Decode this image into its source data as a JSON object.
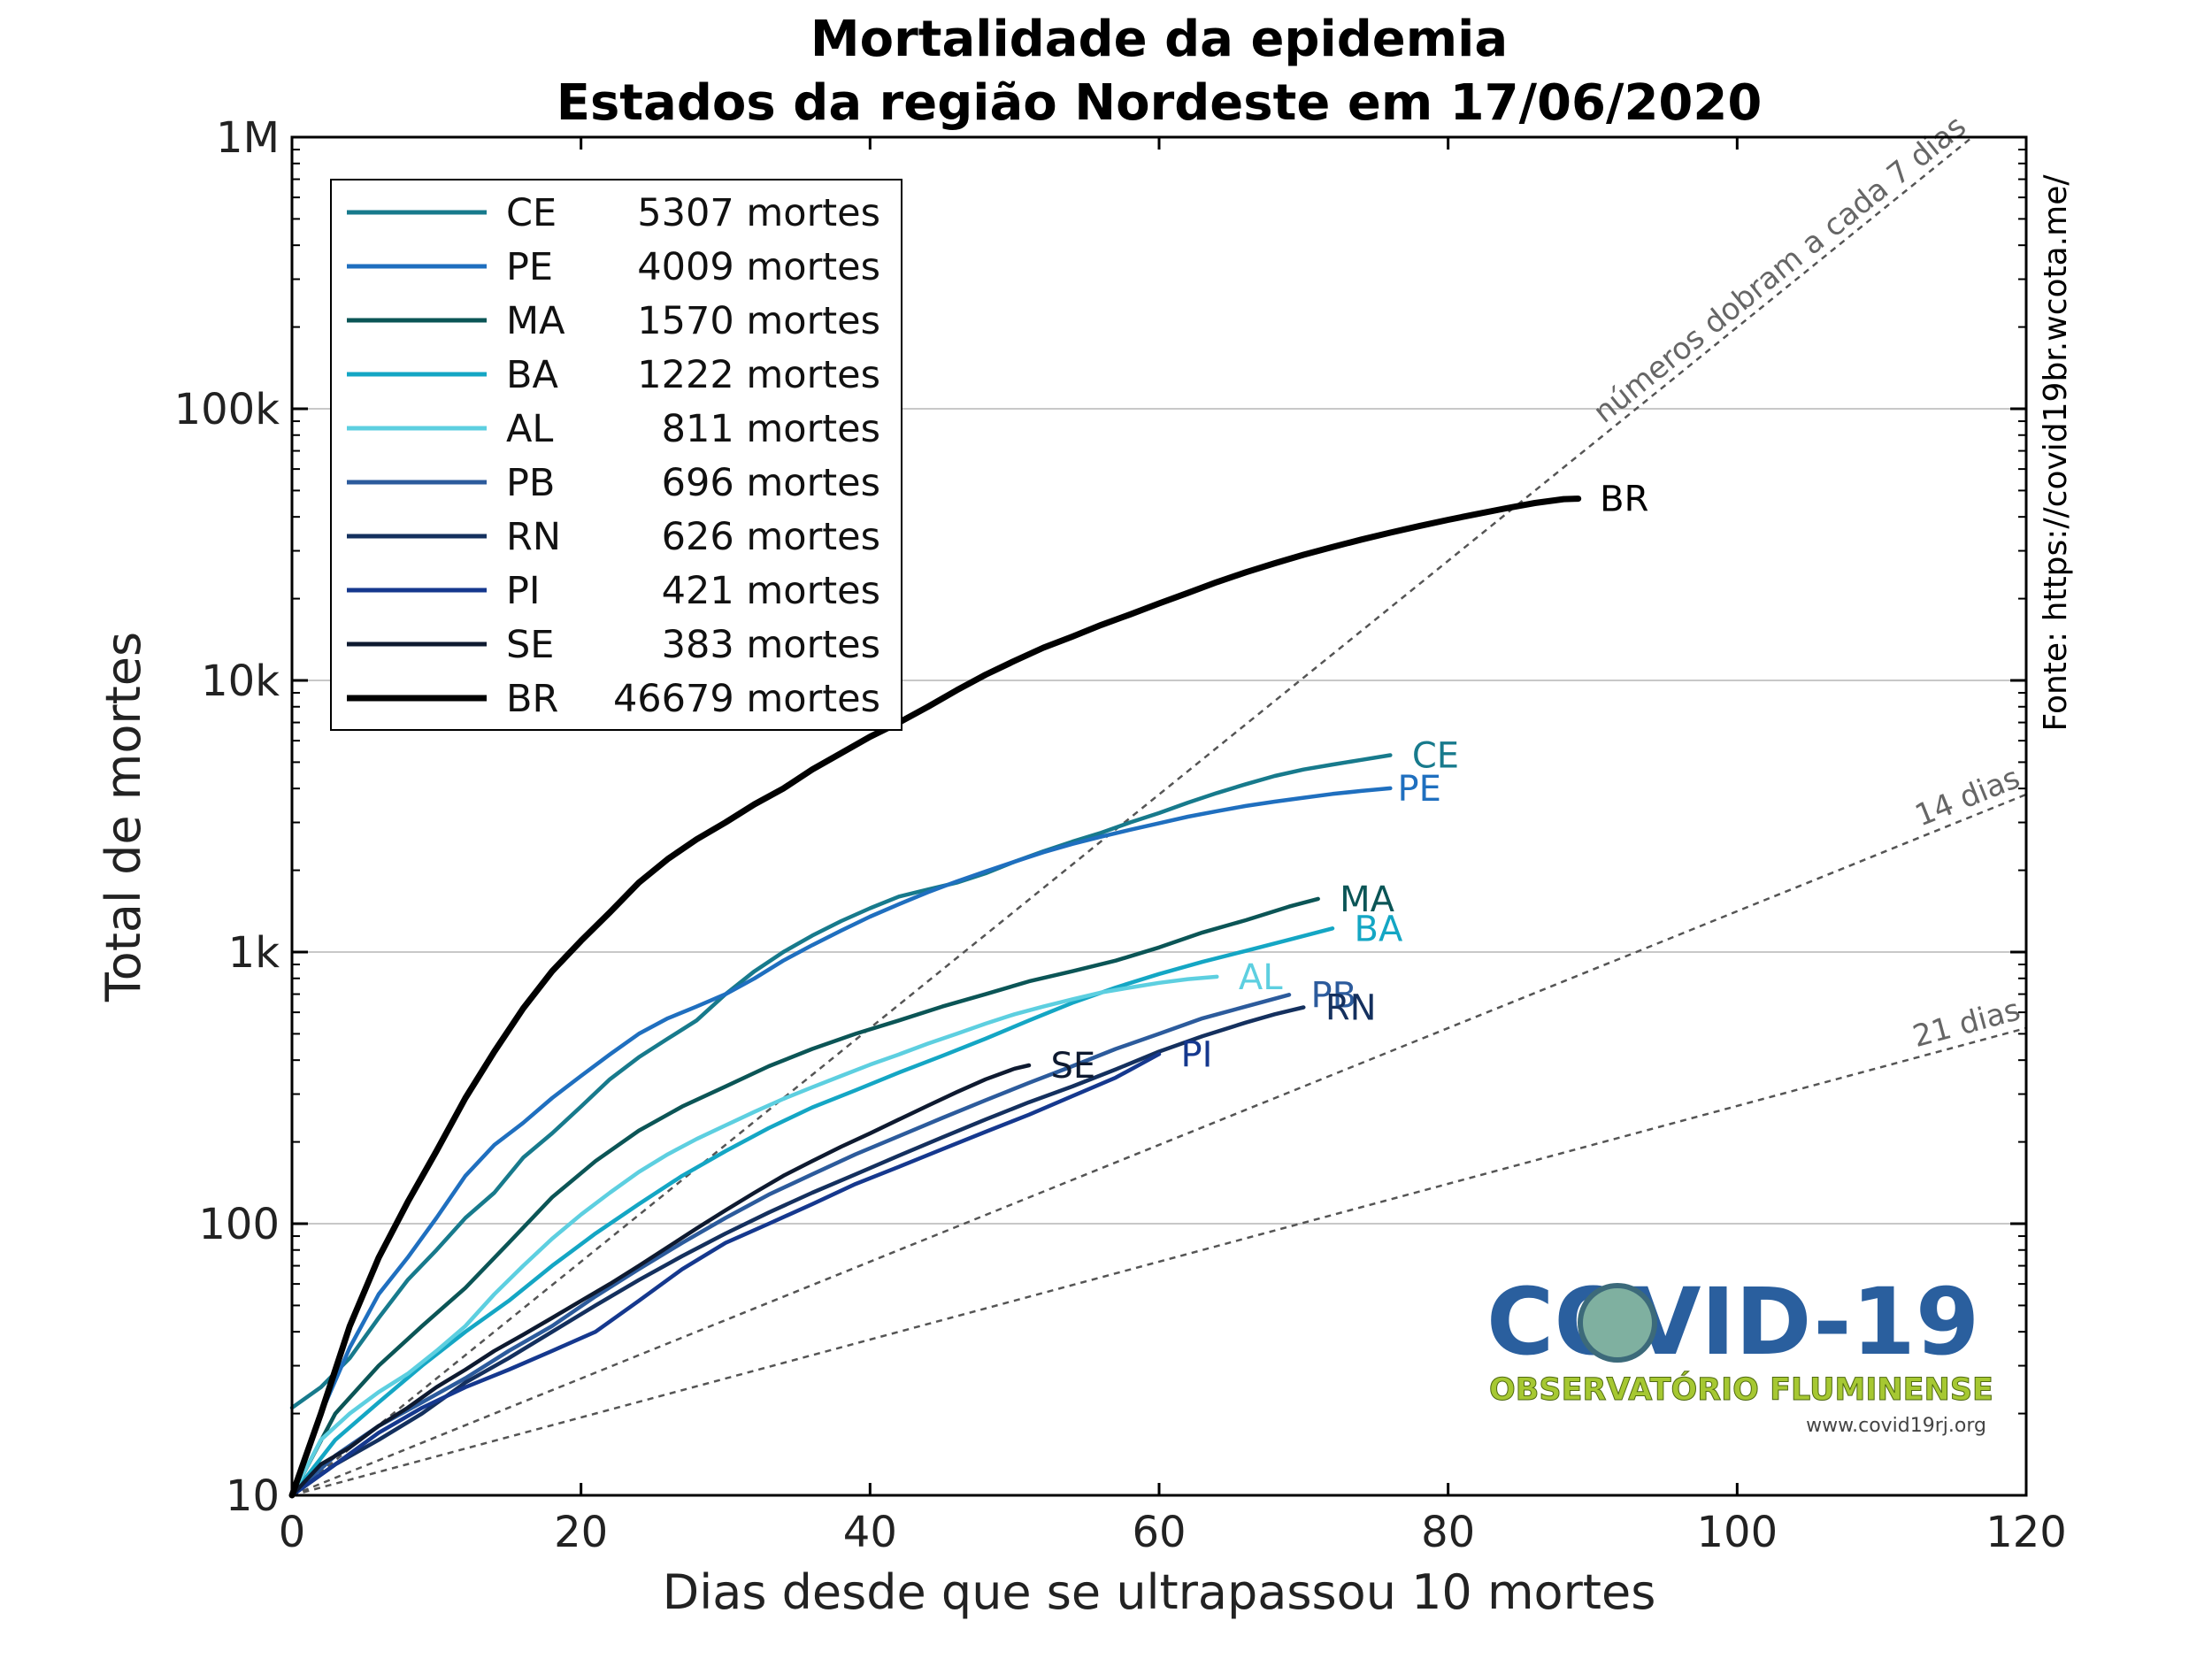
{
  "chart_data": {
    "type": "line",
    "title": "Mortalidade da epidemia",
    "subtitle": "Estados da região Nordeste em 17/06/2020",
    "xlabel": "Dias desde que se ultrapassou 10 mortes",
    "ylabel": "Total de mortes",
    "xlim": [
      0,
      120
    ],
    "ylim": [
      10,
      1000000
    ],
    "yscale": "log",
    "xticks": [
      0,
      20,
      40,
      60,
      80,
      100,
      120
    ],
    "yticks": [
      {
        "value": 10,
        "label": "10"
      },
      {
        "value": 100,
        "label": "100"
      },
      {
        "value": 1000,
        "label": "1k"
      },
      {
        "value": 10000,
        "label": "10k"
      },
      {
        "value": 100000,
        "label": "100k"
      },
      {
        "value": 1000000,
        "label": "1M"
      }
    ],
    "grid": "horizontal",
    "legend_position": "top-left",
    "source": "Fonte: https://covid19br.wcota.me/",
    "reference_lines": [
      {
        "label": "números dobram a cada 7 dias",
        "doubling_days": 7
      },
      {
        "label": "14 dias",
        "doubling_days": 14
      },
      {
        "label": "21 dias",
        "doubling_days": 21
      }
    ],
    "series": [
      {
        "name": "CE",
        "legend": "5307 mortes",
        "color": "#177a8c",
        "x": [
          0,
          2,
          4,
          6,
          8,
          10,
          12,
          14,
          16,
          18,
          20,
          22,
          24,
          26,
          28,
          30,
          32,
          34,
          36,
          38,
          40,
          42,
          44,
          46,
          48,
          50,
          52,
          54,
          56,
          58,
          60,
          62,
          64,
          66,
          68,
          70,
          72,
          74,
          76
        ],
        "y": [
          21,
          25,
          32,
          45,
          62,
          80,
          105,
          130,
          175,
          215,
          270,
          340,
          410,
          480,
          560,
          700,
          850,
          1000,
          1150,
          1300,
          1450,
          1600,
          1700,
          1800,
          1950,
          2150,
          2350,
          2550,
          2750,
          3000,
          3250,
          3550,
          3850,
          4150,
          4450,
          4700,
          4900,
          5100,
          5307
        ]
      },
      {
        "name": "PE",
        "legend": "4009 mortes",
        "color": "#1f6fbf",
        "x": [
          0,
          2,
          4,
          6,
          8,
          10,
          12,
          14,
          16,
          18,
          20,
          22,
          24,
          26,
          28,
          30,
          32,
          34,
          36,
          38,
          40,
          42,
          44,
          46,
          48,
          50,
          52,
          54,
          56,
          58,
          60,
          62,
          64,
          66,
          68,
          70,
          72,
          74,
          76
        ],
        "y": [
          10,
          20,
          35,
          55,
          75,
          105,
          150,
          195,
          235,
          290,
          350,
          420,
          500,
          570,
          630,
          700,
          800,
          930,
          1060,
          1200,
          1350,
          1500,
          1660,
          1820,
          1980,
          2150,
          2330,
          2500,
          2660,
          2820,
          2980,
          3150,
          3300,
          3450,
          3580,
          3700,
          3820,
          3920,
          4009
        ]
      },
      {
        "name": "MA",
        "legend": "1570 mortes",
        "color": "#0b5556",
        "x": [
          0,
          3,
          6,
          9,
          12,
          15,
          18,
          21,
          24,
          27,
          30,
          33,
          36,
          39,
          42,
          45,
          48,
          51,
          54,
          57,
          60,
          63,
          66,
          69,
          71
        ],
        "y": [
          10,
          20,
          30,
          42,
          58,
          85,
          125,
          170,
          220,
          270,
          320,
          380,
          440,
          500,
          560,
          630,
          700,
          780,
          850,
          930,
          1040,
          1180,
          1310,
          1470,
          1570
        ]
      },
      {
        "name": "BA",
        "legend": "1222 mortes",
        "color": "#14a6c4",
        "x": [
          0,
          3,
          6,
          9,
          12,
          15,
          18,
          21,
          24,
          27,
          30,
          33,
          36,
          39,
          42,
          45,
          48,
          51,
          54,
          57,
          60,
          63,
          66,
          69,
          72
        ],
        "y": [
          10,
          16,
          22,
          30,
          40,
          52,
          70,
          92,
          118,
          150,
          185,
          225,
          268,
          310,
          360,
          415,
          480,
          560,
          650,
          740,
          830,
          920,
          1010,
          1110,
          1222
        ]
      },
      {
        "name": "AL",
        "legend": "811 mortes",
        "color": "#5dcfe0",
        "x": [
          0,
          2,
          4,
          6,
          8,
          10,
          12,
          14,
          16,
          18,
          20,
          22,
          24,
          26,
          28,
          30,
          32,
          34,
          36,
          38,
          40,
          42,
          44,
          46,
          48,
          50,
          52,
          54,
          56,
          58,
          60,
          62,
          64
        ],
        "y": [
          10,
          16,
          20,
          24,
          28,
          34,
          42,
          55,
          70,
          88,
          108,
          130,
          155,
          180,
          205,
          230,
          258,
          288,
          318,
          350,
          385,
          420,
          460,
          500,
          545,
          590,
          630,
          670,
          710,
          740,
          770,
          795,
          811
        ]
      },
      {
        "name": "PB",
        "legend": "696 mortes",
        "color": "#2c5b9c",
        "x": [
          0,
          3,
          6,
          9,
          12,
          15,
          18,
          21,
          24,
          27,
          30,
          33,
          36,
          39,
          42,
          45,
          48,
          51,
          54,
          57,
          60,
          63,
          66,
          69
        ],
        "y": [
          10,
          14,
          18,
          22,
          27,
          34,
          42,
          54,
          68,
          85,
          105,
          128,
          152,
          180,
          210,
          245,
          285,
          330,
          380,
          440,
          500,
          570,
          630,
          696
        ]
      },
      {
        "name": "RN",
        "legend": "626 mortes",
        "color": "#14305e",
        "x": [
          0,
          3,
          6,
          9,
          12,
          15,
          18,
          21,
          24,
          27,
          30,
          33,
          36,
          39,
          42,
          45,
          48,
          51,
          54,
          57,
          60,
          63,
          66,
          68,
          70
        ],
        "y": [
          10,
          13,
          16,
          20,
          26,
          32,
          40,
          50,
          62,
          76,
          92,
          110,
          130,
          152,
          178,
          208,
          242,
          280,
          320,
          370,
          430,
          490,
          550,
          590,
          626
        ]
      },
      {
        "name": "PI",
        "legend": "421 mortes",
        "color": "#15388e",
        "x": [
          0,
          3,
          6,
          9,
          12,
          15,
          18,
          21,
          24,
          27,
          30,
          33,
          36,
          39,
          42,
          45,
          48,
          51,
          54,
          57,
          60
        ],
        "y": [
          10,
          13,
          17,
          21,
          25,
          29,
          34,
          40,
          52,
          68,
          85,
          100,
          118,
          140,
          162,
          188,
          218,
          252,
          295,
          345,
          421
        ]
      },
      {
        "name": "SE",
        "legend": "383 mortes",
        "color": "#0e1a30",
        "x": [
          0,
          2,
          4,
          6,
          8,
          10,
          12,
          14,
          16,
          18,
          20,
          22,
          24,
          26,
          28,
          30,
          32,
          34,
          36,
          38,
          40,
          42,
          44,
          46,
          48,
          50,
          51
        ],
        "y": [
          10,
          13,
          15,
          18,
          21,
          25,
          29,
          34,
          39,
          45,
          52,
          60,
          70,
          82,
          96,
          112,
          130,
          150,
          170,
          192,
          215,
          242,
          272,
          305,
          340,
          372,
          383
        ]
      },
      {
        "name": "BR",
        "legend": "46679 mortes",
        "color": "#000000",
        "x": [
          0,
          2,
          4,
          6,
          8,
          10,
          12,
          14,
          16,
          18,
          20,
          22,
          24,
          26,
          28,
          30,
          32,
          34,
          36,
          38,
          40,
          42,
          44,
          46,
          48,
          50,
          52,
          54,
          56,
          58,
          60,
          62,
          64,
          66,
          68,
          70,
          72,
          74,
          76,
          78,
          80,
          82,
          84,
          86,
          88,
          89
        ],
        "y": [
          10,
          20,
          42,
          75,
          120,
          185,
          290,
          430,
          620,
          850,
          1100,
          1400,
          1800,
          2200,
          2600,
          3000,
          3500,
          4000,
          4700,
          5400,
          6200,
          7000,
          8000,
          9200,
          10500,
          11800,
          13200,
          14500,
          16000,
          17500,
          19200,
          21000,
          23000,
          25000,
          27000,
          29000,
          31000,
          33000,
          35000,
          37000,
          39000,
          41000,
          43000,
          45000,
          46500,
          46679
        ]
      }
    ],
    "end_labels": [
      {
        "text": "CE",
        "x": 77.5,
        "y": 5307,
        "color": "#177a8c"
      },
      {
        "text": "PE",
        "x": 76.5,
        "y": 4009,
        "color": "#1f6fbf"
      },
      {
        "text": "MA",
        "x": 72.5,
        "y": 1570,
        "color": "#0b5556"
      },
      {
        "text": "BA",
        "x": 73.5,
        "y": 1222,
        "color": "#14a6c4"
      },
      {
        "text": "AL",
        "x": 65.5,
        "y": 811,
        "color": "#5dcfe0"
      },
      {
        "text": "PB",
        "x": 70.5,
        "y": 696,
        "color": "#2c5b9c"
      },
      {
        "text": "RN",
        "x": 71.5,
        "y": 626,
        "color": "#14305e"
      },
      {
        "text": "PI",
        "x": 61.5,
        "y": 421,
        "color": "#15388e"
      },
      {
        "text": "SE",
        "x": 52.5,
        "y": 383,
        "color": "#0e1a30"
      },
      {
        "text": "BR",
        "x": 90.5,
        "y": 46679,
        "color": "#000000"
      }
    ]
  },
  "logo": {
    "title": "COVID-19",
    "subtitle": "OBSERVATÓRIO FLUMINENSE",
    "url": "www.covid19rj.org"
  }
}
